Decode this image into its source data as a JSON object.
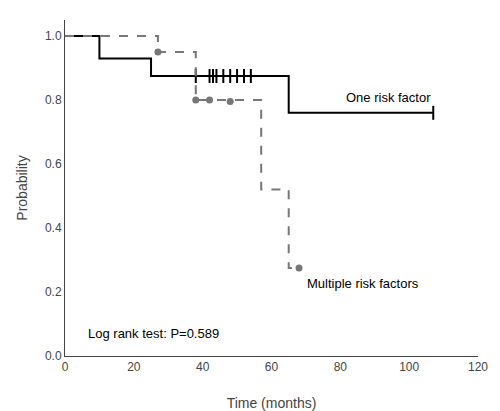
{
  "chart_data": {
    "type": "step",
    "xlabel": "Time (months)",
    "ylabel": "Probability",
    "xlim": [
      0,
      120
    ],
    "ylim": [
      0.0,
      1.05
    ],
    "xticks": [
      0,
      20,
      40,
      60,
      80,
      100,
      120
    ],
    "yticks": [
      {
        "value": 0.0,
        "label": "0.0"
      },
      0.2,
      0.4,
      0.6,
      0.8,
      {
        "value": 1.0,
        "label": "1.0"
      }
    ],
    "grid": false,
    "series": [
      {
        "name": "One risk factor",
        "color": "#000000",
        "line_style": "solid",
        "marker": "tick",
        "x": [
          0,
          10,
          25,
          38,
          65,
          68,
          107
        ],
        "values": [
          1.0,
          0.93,
          0.875,
          0.875,
          0.76,
          0.76,
          0.76
        ],
        "censored": {
          "x": [
            38,
            42,
            43,
            44,
            46,
            48,
            50,
            52,
            54,
            107
          ],
          "values": [
            0.875,
            0.875,
            0.875,
            0.875,
            0.875,
            0.875,
            0.875,
            0.875,
            0.875,
            0.76
          ]
        }
      },
      {
        "name": "Multiple risk factors",
        "color": "#777777",
        "line_style": "dashed",
        "marker": "circle",
        "x": [
          0,
          27,
          38,
          57,
          62,
          65,
          68
        ],
        "values": [
          1.0,
          0.95,
          0.8,
          0.52,
          0.52,
          0.275,
          0.275
        ],
        "censored": {
          "x": [
            27,
            38,
            42,
            48,
            68
          ],
          "values": [
            0.95,
            0.8,
            0.8,
            0.795,
            0.275
          ]
        }
      }
    ],
    "annotations": [
      "Log rank test: P=0.589"
    ]
  }
}
